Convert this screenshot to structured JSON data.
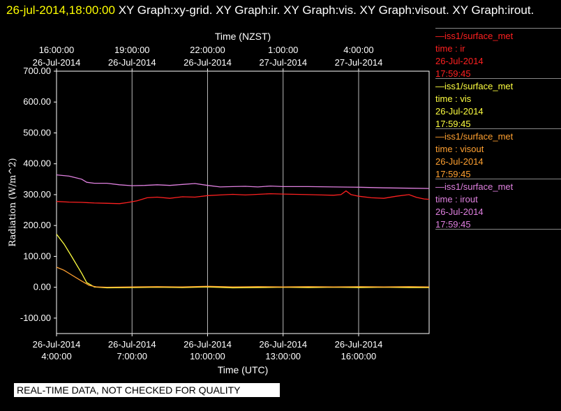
{
  "header": {
    "timestamp": "26-jul-2014,18:00:00",
    "title": " XY Graph:xy-grid.  XY Graph:ir.  XY Graph:vis.  XY Graph:visout.  XY Graph:irout."
  },
  "footer": {
    "text": "REAL-TIME DATA, NOT CHECKED FOR QUALITY"
  },
  "legend": [
    {
      "line1": "—iss1/surface_met",
      "line2": "time : ir",
      "line3": "26-Jul-2014",
      "line4": "17:59:45",
      "color": "#ff2020"
    },
    {
      "line1": "—iss1/surface_met",
      "line2": "time : vis",
      "line3": "26-Jul-2014",
      "line4": "17:59:45",
      "color": "#ffff40"
    },
    {
      "line1": "—iss1/surface_met",
      "line2": "time : visout",
      "line3": "26-Jul-2014",
      "line4": "17:59:45",
      "color": "#ffa030"
    },
    {
      "line1": "—iss1/surface_met",
      "line2": "time : irout",
      "line3": "26-Jul-2014",
      "line4": "17:59:45",
      "color": "#e080e0"
    }
  ],
  "chart_data": {
    "type": "line",
    "title": "",
    "xlabel": "Time (UTC)",
    "x2label": "Time (NZST)",
    "ylabel": "Radiation (W/m^2)",
    "xlim": [
      4.0,
      18.8
    ],
    "ylim": [
      -150,
      700
    ],
    "yticks": [
      -100,
      0,
      100,
      200,
      300,
      400,
      500,
      600,
      700
    ],
    "ytick_labels": [
      "-100.00",
      "0.00",
      "100.00",
      "200.00",
      "300.00",
      "400.00",
      "500.00",
      "600.00",
      "700.00"
    ],
    "xticks": [
      4,
      7,
      10,
      13,
      16
    ],
    "xtick_labels": [
      [
        "26-Jul-2014",
        "4:00:00"
      ],
      [
        "26-Jul-2014",
        "7:00:00"
      ],
      [
        "26-Jul-2014",
        "10:00:00"
      ],
      [
        "26-Jul-2014",
        "13:00:00"
      ],
      [
        "26-Jul-2014",
        "16:00:00"
      ]
    ],
    "x2tick_labels": [
      [
        "16:00:00",
        "26-Jul-2014"
      ],
      [
        "19:00:00",
        "26-Jul-2014"
      ],
      [
        "22:00:00",
        "26-Jul-2014"
      ],
      [
        "1:00:00",
        "27-Jul-2014"
      ],
      [
        "4:00:00",
        "27-Jul-2014"
      ]
    ],
    "grid": true,
    "series": [
      {
        "color": "#ff2020",
        "x": [
          4.0,
          4.5,
          5.0,
          5.5,
          6.0,
          6.5,
          6.8,
          7.2,
          7.6,
          8.0,
          8.5,
          9.0,
          9.5,
          10.0,
          10.5,
          11.0,
          11.5,
          12.0,
          12.5,
          13.0,
          13.5,
          14.0,
          14.5,
          15.0,
          15.3,
          15.5,
          15.7,
          16.0,
          16.5,
          17.0,
          17.5,
          18.0,
          18.3,
          18.6,
          18.8
        ],
        "y": [
          278,
          276,
          275,
          273,
          272,
          271,
          274,
          280,
          290,
          292,
          288,
          293,
          292,
          297,
          299,
          301,
          299,
          301,
          303,
          302,
          301,
          300,
          299,
          298,
          300,
          312,
          300,
          295,
          290,
          288,
          295,
          300,
          291,
          286,
          285
        ]
      },
      {
        "color": "#ffff40",
        "x": [
          4.0,
          4.3,
          4.6,
          5.0,
          5.2,
          5.5,
          6.0,
          7.0,
          8.0,
          9.0,
          10.0,
          11.0,
          12.0,
          13.0,
          14.0,
          15.0,
          16.0,
          17.0,
          18.0,
          18.8
        ],
        "y": [
          172,
          140,
          100,
          45,
          15,
          1,
          -2,
          -1,
          0,
          -1,
          1,
          -2,
          -1,
          0,
          -1,
          0,
          -1,
          0,
          -1,
          -1
        ]
      },
      {
        "color": "#ffa030",
        "x": [
          4.0,
          4.3,
          4.6,
          5.0,
          5.3,
          5.6,
          6.0,
          7.0,
          8.0,
          9.0,
          10.0,
          11.0,
          12.0,
          13.0,
          14.0,
          15.0,
          16.0,
          17.0,
          18.0,
          18.8
        ],
        "y": [
          65,
          55,
          40,
          20,
          6,
          1,
          0,
          1,
          2,
          1,
          3,
          1,
          2,
          1,
          2,
          1,
          2,
          1,
          2,
          1
        ]
      },
      {
        "color": "#e080e0",
        "x": [
          4.0,
          4.5,
          5.0,
          5.2,
          5.5,
          6.0,
          6.5,
          7.0,
          7.5,
          8.0,
          8.5,
          9.0,
          9.5,
          10.0,
          10.5,
          11.0,
          11.5,
          12.0,
          12.5,
          13.0,
          14.0,
          15.0,
          16.0,
          17.0,
          18.0,
          18.8
        ],
        "y": [
          364,
          360,
          350,
          340,
          337,
          337,
          332,
          329,
          330,
          332,
          330,
          333,
          336,
          330,
          325,
          326,
          327,
          325,
          328,
          326,
          326,
          325,
          324,
          322,
          321,
          320
        ]
      }
    ]
  }
}
